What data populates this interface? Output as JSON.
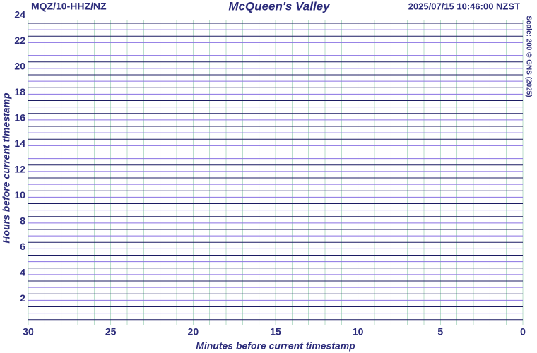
{
  "chart_data": {
    "type": "helicorder",
    "title": "McQueen's Valley",
    "station": "MQZ/10-HHZ/NZ",
    "timestamp": "2025/07/15 10:46:00 NZST",
    "scale_note": "Scale: 200 © GNS (2025)",
    "x_label": "Minutes before current timestamp",
    "y_label": "Hours before current timestamp",
    "xlim": [
      30,
      0
    ],
    "xticks": [
      30,
      25,
      20,
      15,
      10,
      5,
      0
    ],
    "ylim": [
      0,
      24
    ],
    "yticks": [
      2,
      4,
      6,
      8,
      10,
      12,
      14,
      16,
      18,
      20,
      22,
      24
    ],
    "trace_colors": [
      "#1c1c63",
      "#8a72e2"
    ],
    "grid": true
  }
}
